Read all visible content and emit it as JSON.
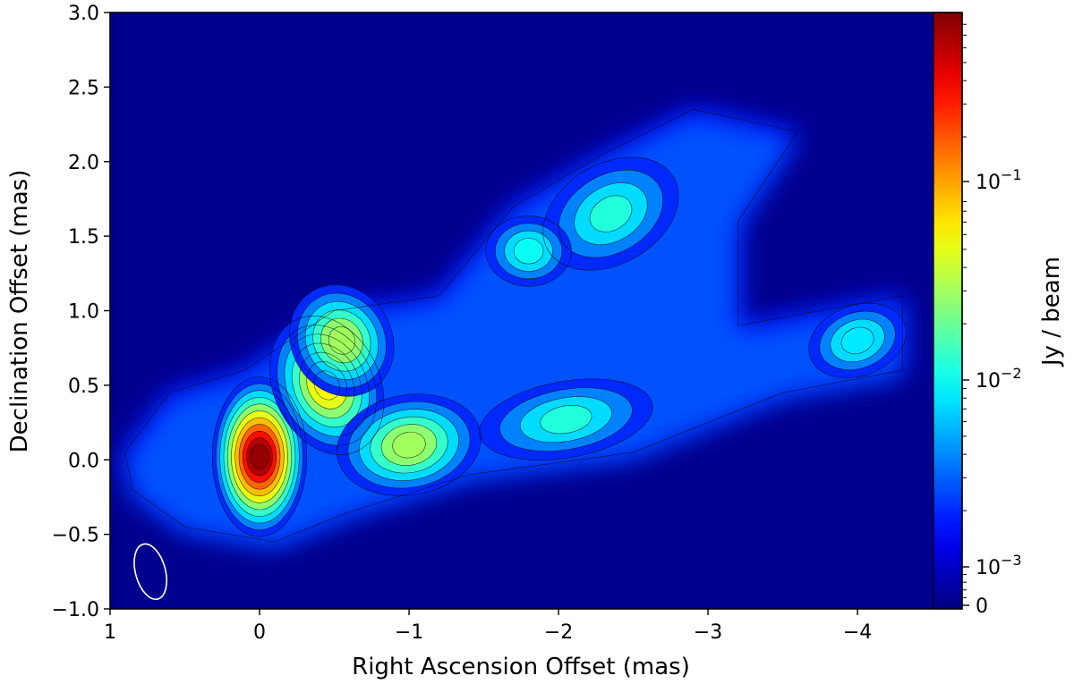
{
  "chart_data": {
    "type": "heatmap",
    "title": "",
    "xlabel": "Right Ascension Offset (mas)",
    "ylabel": "Declination Offset (mas)",
    "xlim": [
      1,
      -4.7
    ],
    "ylim": [
      -1.0,
      3.0
    ],
    "x_ticks": [
      1,
      0,
      -1,
      -2,
      -3,
      -4
    ],
    "x_tick_labels": [
      "1",
      "0",
      "−1",
      "−2",
      "−3",
      "−4"
    ],
    "y_ticks": [
      -1.0,
      -0.5,
      0.0,
      0.5,
      1.0,
      1.5,
      2.0,
      2.5,
      3.0
    ],
    "y_tick_labels": [
      "−1.0",
      "−0.5",
      "0.0",
      "0.5",
      "1.0",
      "1.5",
      "2.0",
      "2.5",
      "3.0"
    ],
    "colorbar": {
      "label": "Jy / beam",
      "scale": "symlog",
      "colormap": "jet",
      "major_ticks": [
        0,
        0.001,
        0.01,
        0.1
      ],
      "major_tick_labels": [
        "0",
        "10−3",
        "10−2",
        "10−1"
      ],
      "vmin": 0,
      "vmax": 0.8
    },
    "background_color": "#00008f",
    "contour_color": "#000000",
    "beam": {
      "center": [
        0.73,
        -0.75
      ],
      "major_axis": 0.38,
      "minor_axis": 0.2,
      "position_angle_deg": -15,
      "color": "#ffffff"
    },
    "components": [
      {
        "ra": 0.0,
        "dec": 0.02,
        "peak_jy_per_beam": 0.8
      },
      {
        "ra": -0.45,
        "dec": 0.5,
        "peak_jy_per_beam": 0.06
      },
      {
        "ra": -1.0,
        "dec": 0.1,
        "peak_jy_per_beam": 0.03
      },
      {
        "ra": -2.05,
        "dec": 0.27,
        "peak_jy_per_beam": 0.012
      },
      {
        "ra": -2.35,
        "dec": 1.65,
        "peak_jy_per_beam": 0.012
      },
      {
        "ra": -1.8,
        "dec": 1.4,
        "peak_jy_per_beam": 0.01
      },
      {
        "ra": -4.0,
        "dec": 0.8,
        "peak_jy_per_beam": 0.008
      },
      {
        "ra": -0.55,
        "dec": 0.8,
        "peak_jy_per_beam": 0.03
      }
    ]
  }
}
